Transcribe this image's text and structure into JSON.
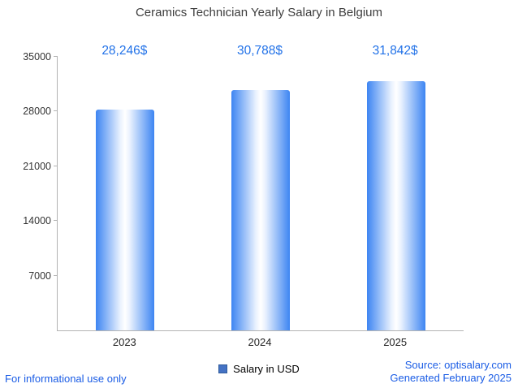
{
  "title": "Ceramics Technician Yearly Salary in Belgium",
  "legend": {
    "label": "Salary in USD"
  },
  "footer": {
    "disclaimer": "For informational use only",
    "source": "Source: optisalary.com",
    "generated": "Generated February 2025"
  },
  "colors": {
    "bar_edge": "#3d85f2",
    "bar_center": "#ffffff",
    "value_label": "#2272e8",
    "footer_text": "#1a5ce5",
    "axis": "#b3b3b3",
    "title_text": "#3d3d3d",
    "legend_marker": "#4472c4"
  },
  "chart_data": {
    "type": "bar",
    "categories": [
      "2023",
      "2024",
      "2025"
    ],
    "values": [
      28246,
      30788,
      31842
    ],
    "value_labels": [
      "28,246$",
      "30,788$",
      "31,842$"
    ],
    "title": "Ceramics Technician Yearly Salary in Belgium",
    "xlabel": "",
    "ylabel": "",
    "ylim": [
      0,
      35000
    ],
    "yticks": [
      7000,
      14000,
      21000,
      28000,
      35000
    ],
    "grid": false,
    "legend_entries": [
      "Salary in USD"
    ],
    "legend_position": "bottom"
  }
}
